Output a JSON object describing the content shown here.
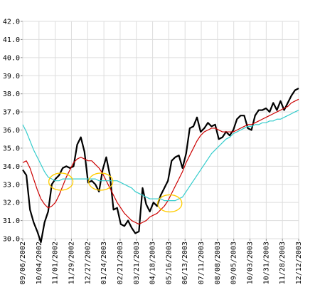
{
  "chart_data": {
    "type": "line",
    "title": "",
    "xlabel": "",
    "ylabel": "",
    "ylim": [
      30.0,
      42.0
    ],
    "y_ticks": [
      "30.0",
      "31.0",
      "32.0",
      "33.0",
      "34.0",
      "35.0",
      "36.0",
      "37.0",
      "38.0",
      "39.0",
      "40.0",
      "41.0",
      "42.0"
    ],
    "x_tick_labels": [
      "09/06/2002",
      "10/04/2002",
      "11/01/2002",
      "11/29/2002",
      "12/27/2002",
      "01/24/2003",
      "02/21/2003",
      "03/21/2003",
      "04/18/2003",
      "05/16/2003",
      "06/13/2003",
      "07/11/2003",
      "08/08/2003",
      "09/05/2003",
      "10/03/2003",
      "10/31/2003",
      "11/28/2003",
      "12/12/2003"
    ],
    "grid": true,
    "legend": "none",
    "series": [
      {
        "color": "#000000",
        "values": [
          33.8,
          33.5,
          31.6,
          30.9,
          30.4,
          29.8,
          30.9,
          31.5,
          33.0,
          33.3,
          33.5,
          33.9,
          34.0,
          33.9,
          34.0,
          35.2,
          35.6,
          34.8,
          33.1,
          33.2,
          33.0,
          32.6,
          33.8,
          34.5,
          33.5,
          31.6,
          31.7,
          30.8,
          30.7,
          31.0,
          30.6,
          30.3,
          30.4,
          32.8,
          31.9,
          31.5,
          32.0,
          31.8,
          32.4,
          32.8,
          33.2,
          34.3,
          34.5,
          34.6,
          33.9,
          34.7,
          36.1,
          36.2,
          36.7,
          35.9,
          36.1,
          36.4,
          36.2,
          36.3,
          35.5,
          35.6,
          35.9,
          35.7,
          36.0,
          36.6,
          36.8,
          36.8,
          36.1,
          36.0,
          36.8,
          37.1,
          37.1,
          37.2,
          37.0,
          37.5,
          37.1,
          37.6,
          37.1,
          37.5,
          37.9,
          38.2,
          38.3
        ]
      },
      {
        "color": "#cc0000",
        "values": [
          34.2,
          34.3,
          33.9,
          33.3,
          32.7,
          32.2,
          31.9,
          31.7,
          31.8,
          32.0,
          32.4,
          32.9,
          33.4,
          33.8,
          34.2,
          34.4,
          34.5,
          34.4,
          34.3,
          34.3,
          34.1,
          33.9,
          33.6,
          33.2,
          32.8,
          32.4,
          32.0,
          31.7,
          31.4,
          31.2,
          31.0,
          30.9,
          30.8,
          30.9,
          31.0,
          31.2,
          31.3,
          31.4,
          31.6,
          31.8,
          32.1,
          32.5,
          32.9,
          33.3,
          33.7,
          34.2,
          34.6,
          35.0,
          35.4,
          35.7,
          35.9,
          36.0,
          36.1,
          36.1,
          36.0,
          35.9,
          35.9,
          35.9,
          35.9,
          36.0,
          36.1,
          36.2,
          36.3,
          36.3,
          36.4,
          36.5,
          36.6,
          36.7,
          36.8,
          36.9,
          37.0,
          37.1,
          37.2,
          37.3,
          37.5,
          37.6,
          37.7
        ]
      },
      {
        "color": "#33cccc",
        "values": [
          36.3,
          35.9,
          35.4,
          34.9,
          34.5,
          34.1,
          33.7,
          33.4,
          33.3,
          33.2,
          33.2,
          33.3,
          33.3,
          33.3,
          33.3,
          33.3,
          33.3,
          33.3,
          33.3,
          33.3,
          33.3,
          33.2,
          33.2,
          33.2,
          33.2,
          33.2,
          33.2,
          33.1,
          33.0,
          32.9,
          32.8,
          32.6,
          32.5,
          32.4,
          32.3,
          32.2,
          32.2,
          32.2,
          32.2,
          32.1,
          32.1,
          32.1,
          32.1,
          32.2,
          32.3,
          32.6,
          32.9,
          33.2,
          33.5,
          33.8,
          34.1,
          34.4,
          34.7,
          34.9,
          35.1,
          35.3,
          35.5,
          35.6,
          35.8,
          35.9,
          36.0,
          36.1,
          36.2,
          36.2,
          36.3,
          36.3,
          36.4,
          36.4,
          36.5,
          36.5,
          36.6,
          36.6,
          36.7,
          36.8,
          36.9,
          37.0,
          37.1
        ]
      }
    ],
    "annotations": [
      {
        "type": "ellipse",
        "color": "#ffcc00",
        "x_index": 10.5,
        "y": 33.15
      },
      {
        "type": "ellipse",
        "color": "#ffcc00",
        "x_index": 21.5,
        "y": 33.15
      },
      {
        "type": "ellipse",
        "color": "#ffcc00",
        "x_index": 40.5,
        "y": 31.95
      }
    ]
  }
}
